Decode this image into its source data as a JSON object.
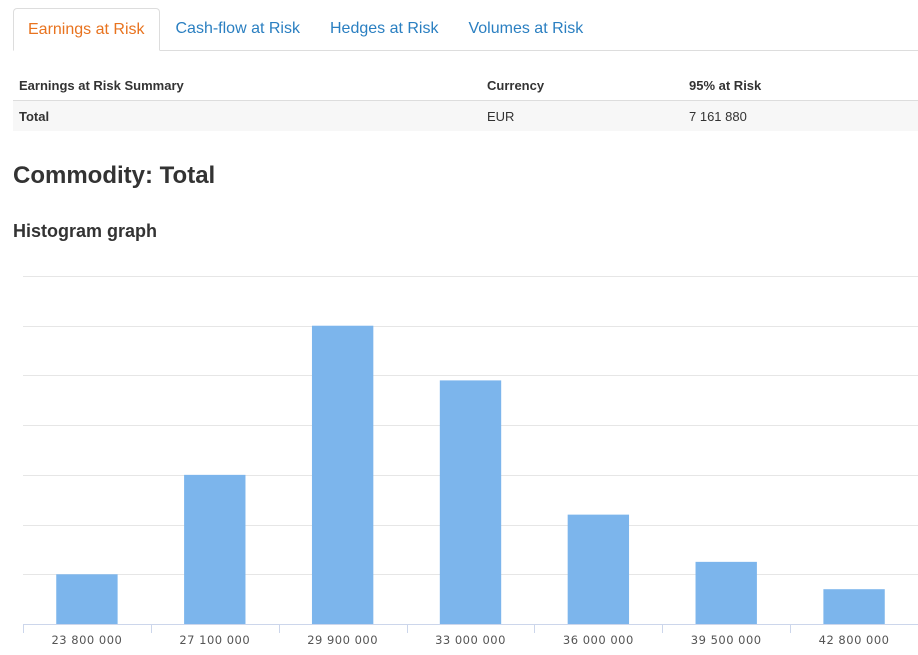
{
  "tabs": [
    {
      "label": "Earnings at Risk",
      "active": true
    },
    {
      "label": "Cash-flow at Risk",
      "active": false
    },
    {
      "label": "Hedges at Risk",
      "active": false
    },
    {
      "label": "Volumes at Risk",
      "active": false
    }
  ],
  "summary": {
    "headers": [
      "Earnings at Risk Summary",
      "Currency",
      "95% at Risk"
    ],
    "row": {
      "label": "Total",
      "currency": "EUR",
      "value": "7 161 880"
    }
  },
  "commodity_title": "Commodity: Total",
  "histogram_title": "Histogram graph",
  "colors": {
    "bar": "#7cb5ec",
    "tab_active": "#e8731f",
    "tab_link": "#2a7fc1",
    "grid": "#e6e6e6",
    "axis": "#ccd6eb"
  },
  "chart_data": {
    "type": "bar",
    "categories": [
      "23 800 000",
      "27 100 000",
      "29 900 000",
      "33 000 000",
      "36 000 000",
      "39 500 000",
      "42 800 000"
    ],
    "values": [
      1.0,
      3.0,
      6.0,
      4.9,
      2.2,
      1.25,
      0.7
    ],
    "ylim": [
      0,
      7
    ],
    "grid": true,
    "legend": "none"
  }
}
